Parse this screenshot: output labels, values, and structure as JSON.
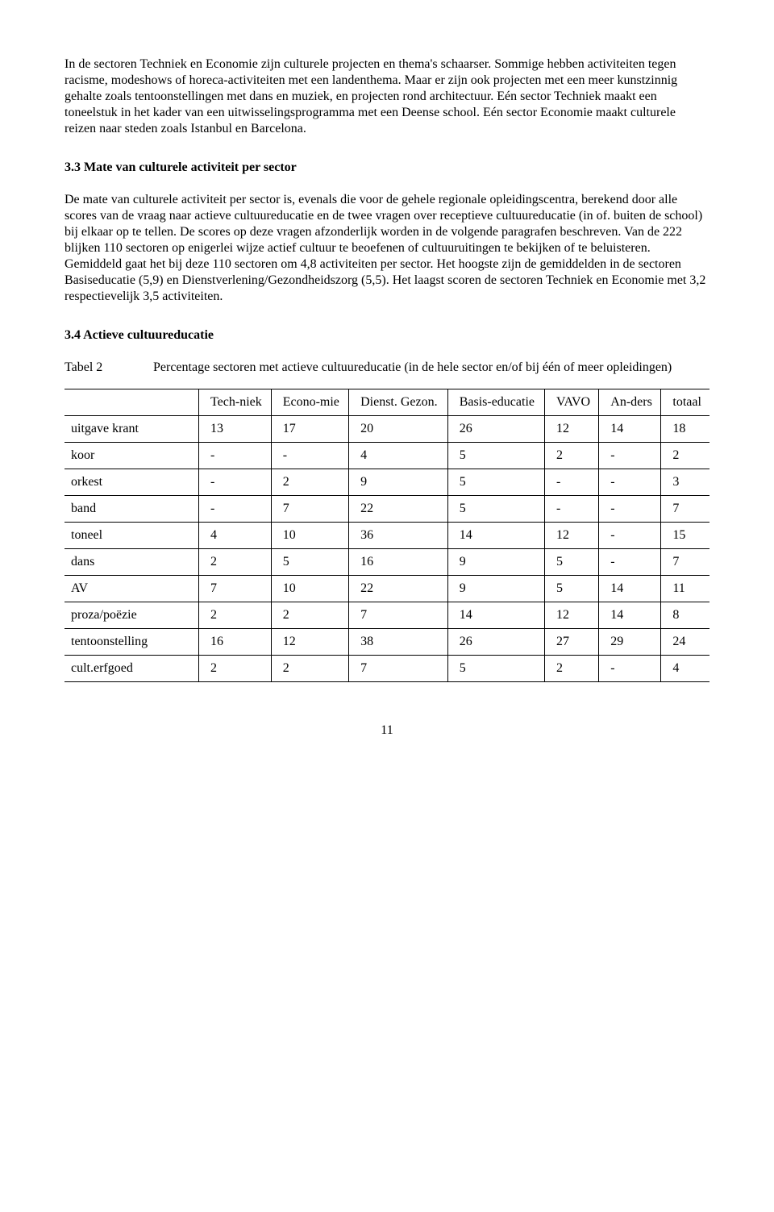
{
  "para1": "In de sectoren Techniek en Economie zijn culturele projecten en thema's schaarser. Sommige hebben activiteiten tegen racisme, modeshows of horeca-activiteiten met een landenthema. Maar er zijn ook projecten met een meer kunstzinnig gehalte zoals tentoonstellingen met dans en muziek, en projecten rond architectuur. Eén sector Techniek maakt een toneelstuk in het kader van een uitwisselingsprogramma met een Deense school. Eén sector Economie maakt culturele reizen naar steden zoals Istanbul en Barcelona.",
  "heading33": "3.3 Mate van culturele activiteit per sector",
  "para2": "De mate van culturele activiteit per sector is, evenals die voor de gehele regionale opleidingscentra, berekend door alle scores van de vraag naar actieve cultuureducatie en de twee vragen over receptieve cultuureducatie (in of. buiten de school) bij elkaar op te tellen. De scores op deze vragen afzonderlijk worden in de volgende paragrafen beschreven. Van de 222 blijken 110 sectoren op enigerlei wijze actief cultuur te beoefenen of cultuuruitingen te bekijken of te beluisteren. Gemiddeld gaat het bij deze 110 sectoren om 4,8 activiteiten per sector. Het hoogste zijn de gemiddelden in de sectoren Basiseducatie (5,9) en Dienstverlening/Gezondheidszorg (5,5). Het laagst scoren de sectoren Techniek en Economie met 3,2 respectievelijk 3,5 activiteiten.",
  "heading34": "3.4 Actieve cultuureducatie",
  "tableLabel": "Tabel 2",
  "tableCaption": "Percentage sectoren met actieve cultuureducatie (in de hele sector en/of bij één of meer opleidingen)",
  "columns": [
    "",
    "Tech-niek",
    "Econo-mie",
    "Dienst. Gezon.",
    "Basis-educatie",
    "VAVO",
    "An-ders",
    "totaal"
  ],
  "rows": [
    [
      "uitgave krant",
      "13",
      "17",
      "20",
      "26",
      "12",
      "14",
      "18"
    ],
    [
      "koor",
      "-",
      "-",
      "4",
      "5",
      "2",
      "-",
      "2"
    ],
    [
      "orkest",
      "-",
      "2",
      "9",
      "5",
      "-",
      "-",
      "3"
    ],
    [
      "band",
      "-",
      "7",
      "22",
      "5",
      "-",
      "-",
      "7"
    ],
    [
      "toneel",
      "4",
      "10",
      "36",
      "14",
      "12",
      "-",
      "15"
    ],
    [
      "dans",
      "2",
      "5",
      "16",
      "9",
      "5",
      "-",
      "7"
    ],
    [
      "AV",
      "7",
      "10",
      "22",
      "9",
      "5",
      "14",
      "11"
    ],
    [
      "proza/poëzie",
      "2",
      "2",
      "7",
      "14",
      "12",
      "14",
      "8"
    ],
    [
      "tentoonstelling",
      "16",
      "12",
      "38",
      "26",
      "27",
      "29",
      "24"
    ],
    [
      "cult.erfgoed",
      "2",
      "2",
      "7",
      "5",
      "2",
      "-",
      "4"
    ]
  ],
  "pageNumber": "11"
}
